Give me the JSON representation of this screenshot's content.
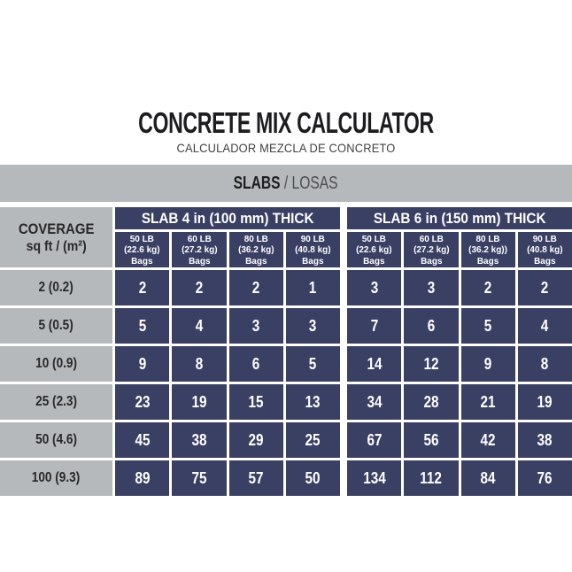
{
  "header": {
    "title": "CONCRETE MIX CALCULATOR",
    "subtitle": "CALCULADOR MEZCLA DE CONCRETO"
  },
  "section_bar": {
    "primary": "SLABS",
    "separator": " / ",
    "secondary": "LOSAS"
  },
  "colors": {
    "navy": "#3a3f64",
    "gray": "#b6b9bb",
    "title_text": "#1d1d1f",
    "cell_text_light": "#ffffff"
  },
  "chart_data": {
    "type": "table",
    "title": "CONCRETE MIX CALCULATOR",
    "subtitle": "CALCULADOR MEZCLA DE CONCRETO",
    "section": "SLABS / LOSAS",
    "coverage_header": {
      "title": "COVERAGE",
      "unit": "sq ft / (m²)"
    },
    "groups": [
      {
        "title": "SLAB 4 in (100 mm) THICK",
        "columns": [
          {
            "weight": "50 LB",
            "metric": "(22.6 kg)",
            "unit": "Bags"
          },
          {
            "weight": "60 LB",
            "metric": "(27.2 kg)",
            "unit": "Bags"
          },
          {
            "weight": "80 LB",
            "metric": "(36.2 kg)",
            "unit": "Bags"
          },
          {
            "weight": "90 LB",
            "metric": "(40.8 kg)",
            "unit": "Bags"
          }
        ]
      },
      {
        "title": "SLAB 6 in (150 mm) THICK",
        "columns": [
          {
            "weight": "50 LB",
            "metric": "(22.6 kg)",
            "unit": "Bags"
          },
          {
            "weight": "60 LB",
            "metric": "(27.2 kg)",
            "unit": "Bags"
          },
          {
            "weight": "80 LB",
            "metric": "(36.2 kg))",
            "unit": "Bags"
          },
          {
            "weight": "90 LB",
            "metric": "(40.8 kg)",
            "unit": "Bags"
          }
        ]
      }
    ],
    "rows": [
      {
        "coverage": "2 (0.2)",
        "slab4": [
          2,
          2,
          2,
          1
        ],
        "slab6": [
          3,
          3,
          2,
          2
        ]
      },
      {
        "coverage": "5 (0.5)",
        "slab4": [
          5,
          4,
          3,
          3
        ],
        "slab6": [
          7,
          6,
          5,
          4
        ]
      },
      {
        "coverage": "10 (0.9)",
        "slab4": [
          9,
          8,
          6,
          5
        ],
        "slab6": [
          14,
          12,
          9,
          8
        ]
      },
      {
        "coverage": "25 (2.3)",
        "slab4": [
          23,
          19,
          15,
          13
        ],
        "slab6": [
          34,
          28,
          21,
          19
        ]
      },
      {
        "coverage": "50 (4.6)",
        "slab4": [
          45,
          38,
          29,
          25
        ],
        "slab6": [
          67,
          56,
          42,
          38
        ]
      },
      {
        "coverage": "100 (9.3)",
        "slab4": [
          89,
          75,
          57,
          50
        ],
        "slab6": [
          134,
          112,
          84,
          76
        ]
      }
    ]
  }
}
